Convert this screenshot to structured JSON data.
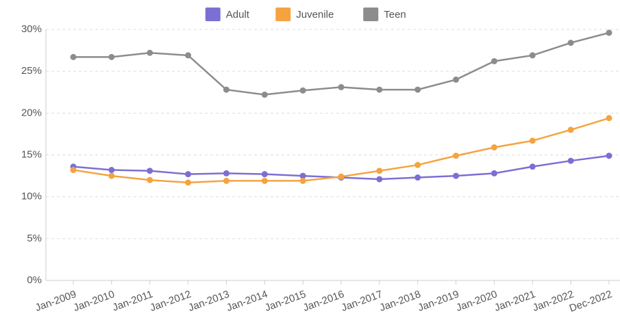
{
  "chart_data": {
    "type": "line",
    "categories": [
      "Jan-2009",
      "Jan-2010",
      "Jan-2011",
      "Jan-2012",
      "Jan-2013",
      "Jan-2014",
      "Jan-2015",
      "Jan-2016",
      "Jan-2017",
      "Jan-2018",
      "Jan-2019",
      "Jan-2020",
      "Jan-2021",
      "Jan-2022",
      "Dec-2022"
    ],
    "series": [
      {
        "name": "Adult",
        "color": "#7b6fd4",
        "values": [
          13.6,
          13.2,
          13.1,
          12.7,
          12.8,
          12.7,
          12.5,
          12.3,
          12.1,
          12.3,
          12.5,
          12.8,
          13.6,
          14.3,
          14.9
        ]
      },
      {
        "name": "Juvenile",
        "color": "#f5a340",
        "values": [
          13.2,
          12.5,
          12.0,
          11.7,
          11.9,
          11.9,
          11.9,
          12.4,
          13.1,
          13.8,
          14.9,
          15.9,
          16.7,
          18.0,
          19.4
        ]
      },
      {
        "name": "Teen",
        "color": "#8c8c8c",
        "values": [
          26.7,
          26.7,
          27.2,
          26.9,
          22.8,
          22.2,
          22.7,
          23.1,
          22.8,
          22.8,
          24.0,
          26.2,
          26.9,
          28.4,
          29.6
        ]
      }
    ],
    "ylim": [
      0,
      30
    ],
    "yticks": [
      {
        "value": 0,
        "label": "0%"
      },
      {
        "value": 5,
        "label": "5%"
      },
      {
        "value": 10,
        "label": "10%"
      },
      {
        "value": 15,
        "label": "15%"
      },
      {
        "value": 20,
        "label": "20%"
      },
      {
        "value": 25,
        "label": "25%"
      },
      {
        "value": 30,
        "label": "30%"
      }
    ],
    "grid": true
  }
}
